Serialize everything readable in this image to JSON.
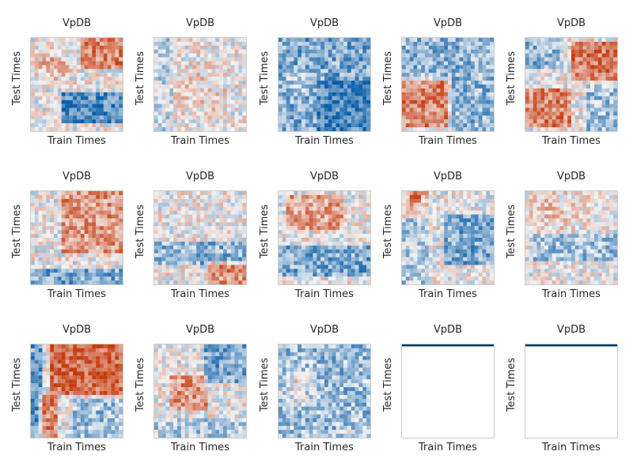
{
  "chart_data": {
    "type": "heatmap",
    "layout": "3 rows x 5 columns of temporal-generalization matrices",
    "colormap": "diverging blue-white-red (RdBu_r)",
    "colors": {
      "negative": "#0a5ea8",
      "neutral": "#f4f4f4",
      "positive": "#c63a0e",
      "frame": "#cccccc",
      "bar": "#0b3a6b"
    },
    "grid": false,
    "panels": [
      {
        "title": "VpDB",
        "xlabel": "Train Times",
        "ylabel": "Test Times",
        "pattern": "red upper-right block, red upper-left blob, blue lower band"
      },
      {
        "title": "VpDB",
        "xlabel": "Train Times",
        "ylabel": "Test Times",
        "pattern": "weak mixed, faint red center"
      },
      {
        "title": "VpDB",
        "xlabel": "Train Times",
        "ylabel": "Test Times",
        "pattern": "predominantly blue, blue lower-right"
      },
      {
        "title": "VpDB",
        "xlabel": "Train Times",
        "ylabel": "Test Times",
        "pattern": "blue top, red lower-left block"
      },
      {
        "title": "VpDB",
        "xlabel": "Train Times",
        "ylabel": "Test Times",
        "pattern": "red upper-right and left-middle, blue top-left and right"
      },
      {
        "title": "VpDB",
        "xlabel": "Train Times",
        "ylabel": "Test Times",
        "pattern": "red upper-right, blue bottom stripes"
      },
      {
        "title": "VpDB",
        "xlabel": "Train Times",
        "ylabel": "Test Times",
        "pattern": "blue middle band, red bottom-right"
      },
      {
        "title": "VpDB",
        "xlabel": "Train Times",
        "ylabel": "Test Times",
        "pattern": "red upper-middle, blue lower band"
      },
      {
        "title": "VpDB",
        "xlabel": "Train Times",
        "ylabel": "Test Times",
        "pattern": "red top-left corner, blue right half"
      },
      {
        "title": "VpDB",
        "xlabel": "Train Times",
        "ylabel": "Test Times",
        "pattern": "weak mixed, blue patches"
      },
      {
        "title": "VpDB",
        "xlabel": "Train Times",
        "ylabel": "Test Times",
        "pattern": "strong red upper-right, red left column, blue left edge"
      },
      {
        "title": "VpDB",
        "xlabel": "Train Times",
        "ylabel": "Test Times",
        "pattern": "blue top-right, red center-left"
      },
      {
        "title": "VpDB",
        "xlabel": "Train Times",
        "ylabel": "Test Times",
        "pattern": "mostly blue, red left-middle, red bottom line"
      },
      {
        "title": "VpDB",
        "xlabel": "Train Times",
        "ylabel": "Test Times",
        "pattern": "empty with dark blue top row"
      },
      {
        "title": "VpDB",
        "xlabel": "Train Times",
        "ylabel": "Test Times",
        "pattern": "empty with dark blue top row"
      }
    ]
  }
}
